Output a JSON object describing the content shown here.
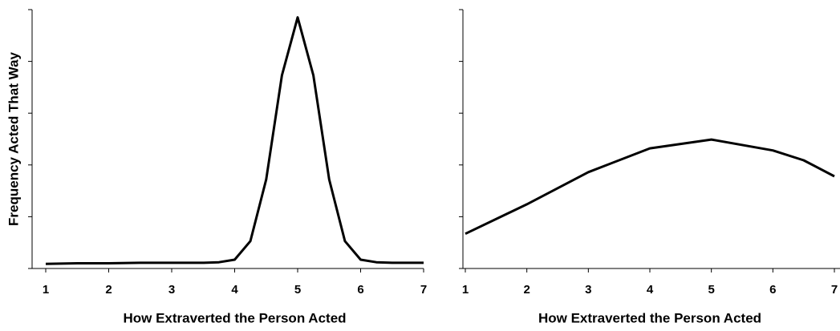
{
  "chart_data": [
    {
      "type": "line",
      "xlabel": "How Extraverted the Person Acted",
      "ylabel": "Frequency Acted That Way",
      "xlim": [
        1,
        7
      ],
      "xticks": [
        1,
        2,
        3,
        4,
        5,
        6,
        7
      ],
      "ylim": [
        0,
        5
      ],
      "yticks": [
        0,
        1,
        2,
        3,
        4,
        5
      ],
      "x": [
        1,
        1.5,
        2,
        2.5,
        3,
        3.5,
        3.75,
        4,
        4.25,
        4.5,
        4.75,
        5,
        5.25,
        5.5,
        5.75,
        6,
        6.25,
        6.5,
        7
      ],
      "series": [
        {
          "color": "#000000",
          "values": [
            0.09,
            0.1,
            0.1,
            0.11,
            0.11,
            0.11,
            0.12,
            0.17,
            0.53,
            1.72,
            3.73,
            4.85,
            3.73,
            1.72,
            0.53,
            0.17,
            0.12,
            0.11,
            0.11
          ]
        }
      ]
    },
    {
      "type": "line",
      "xlabel": "How Extraverted the Person Acted",
      "xlim": [
        1,
        7
      ],
      "xticks": [
        1,
        2,
        3,
        4,
        5,
        6,
        7
      ],
      "ylim": [
        0,
        5
      ],
      "yticks": [
        0,
        1,
        2,
        3,
        4,
        5
      ],
      "x": [
        1,
        2,
        3,
        4,
        5,
        6,
        6.5,
        7
      ],
      "series": [
        {
          "color": "#000000",
          "values": [
            0.67,
            1.24,
            1.86,
            2.32,
            2.49,
            2.28,
            2.09,
            1.78
          ]
        }
      ]
    }
  ]
}
